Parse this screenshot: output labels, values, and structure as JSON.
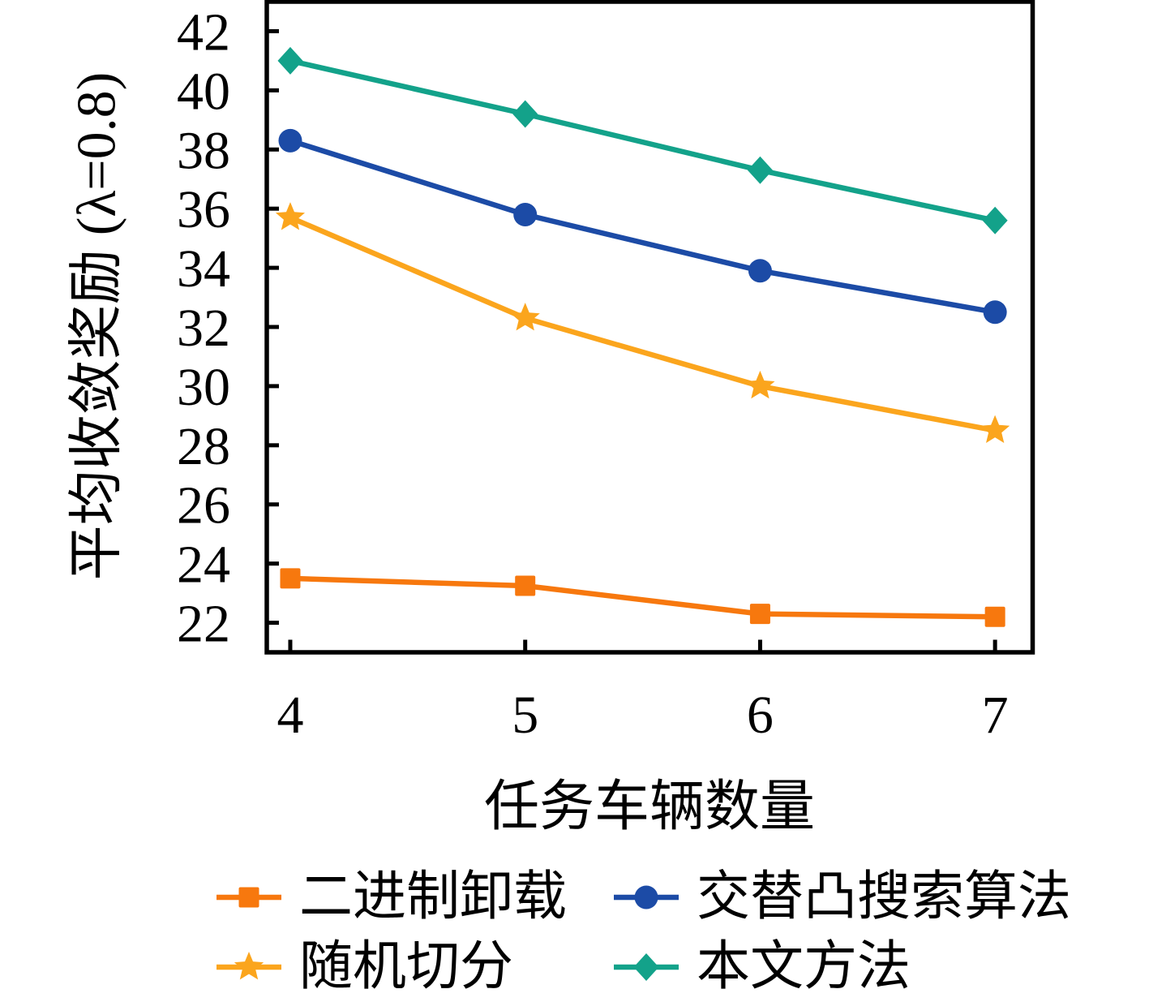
{
  "chart_data": {
    "type": "line",
    "title": "",
    "xlabel": "任务车辆数量",
    "ylabel": "平均收敛奖励 (λ=0.8)",
    "x": [
      4,
      5,
      6,
      7
    ],
    "x_ticks": [
      "4",
      "5",
      "6",
      "7"
    ],
    "y_ticks": [
      22,
      24,
      26,
      28,
      30,
      32,
      34,
      36,
      38,
      40,
      42
    ],
    "xlim": [
      3.9,
      7.16
    ],
    "ylim": [
      21.0,
      43.0
    ],
    "grid": false,
    "legend_position": "below chart, two columns",
    "series": [
      {
        "name": "二进制卸载",
        "marker": "square",
        "color": "#F7780E",
        "values": [
          23.5,
          23.25,
          22.3,
          22.2
        ]
      },
      {
        "name": "随机切分",
        "marker": "star",
        "color": "#FBA51D",
        "values": [
          35.7,
          32.3,
          30.0,
          28.5
        ]
      },
      {
        "name": "交替凸搜索算法",
        "marker": "circle",
        "color": "#1C4BA6",
        "values": [
          38.3,
          35.8,
          33.9,
          32.5
        ]
      },
      {
        "name": "本文方法",
        "marker": "diamond",
        "color": "#13A28A",
        "values": [
          41.0,
          39.2,
          37.3,
          35.6
        ]
      }
    ]
  },
  "axes": {
    "x_title": "任务车辆数量",
    "y_title": "平均收敛奖励 (λ=0.8)"
  },
  "legend": {
    "items": [
      {
        "label": "二进制卸载",
        "marker": "square",
        "color": "#F7780E"
      },
      {
        "label": "交替凸搜索算法",
        "marker": "circle",
        "color": "#1C4BA6"
      },
      {
        "label": "随机切分",
        "marker": "star",
        "color": "#FBA51D"
      },
      {
        "label": "本文方法",
        "marker": "diamond",
        "color": "#13A28A"
      }
    ]
  },
  "colors": {
    "axis": "#000000",
    "background": "#FFFFFF"
  }
}
